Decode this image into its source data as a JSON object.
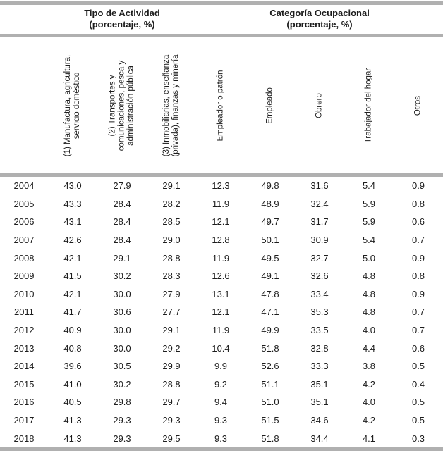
{
  "colors": {
    "rule_gray": "#b0b0b0",
    "text": "#1c1c1c",
    "background": "#ffffff"
  },
  "table": {
    "group_headers": [
      {
        "title": "Tipo de Actividad",
        "subtitle": "(porcentaje, %)",
        "span": 3
      },
      {
        "title": "Categoría Ocupacional",
        "subtitle": "(porcentaje, %)",
        "span": 5
      }
    ],
    "columns": [
      "(1) Manufactura, agricultura,\nservicio doméstico",
      "(2) Transportes y\ncomunicaciones, pesca y\nadministración pública",
      "(3) Inmobiliarias, enseñanza\n(privada), finanzas y minería",
      "Empleador o patrón",
      "Empleado",
      "Obrero",
      "Trabajador del hogar",
      "Otros"
    ],
    "rows": [
      {
        "year": "2004",
        "values": [
          "43.0",
          "27.9",
          "29.1",
          "12.3",
          "49.8",
          "31.6",
          "5.4",
          "0.9"
        ]
      },
      {
        "year": "2005",
        "values": [
          "43.3",
          "28.4",
          "28.2",
          "11.9",
          "48.9",
          "32.4",
          "5.9",
          "0.8"
        ]
      },
      {
        "year": "2006",
        "values": [
          "43.1",
          "28.4",
          "28.5",
          "12.1",
          "49.7",
          "31.7",
          "5.9",
          "0.6"
        ]
      },
      {
        "year": "2007",
        "values": [
          "42.6",
          "28.4",
          "29.0",
          "12.8",
          "50.1",
          "30.9",
          "5.4",
          "0.7"
        ]
      },
      {
        "year": "2008",
        "values": [
          "42.1",
          "29.1",
          "28.8",
          "11.9",
          "49.5",
          "32.7",
          "5.0",
          "0.9"
        ]
      },
      {
        "year": "2009",
        "values": [
          "41.5",
          "30.2",
          "28.3",
          "12.6",
          "49.1",
          "32.6",
          "4.8",
          "0.8"
        ]
      },
      {
        "year": "2010",
        "values": [
          "42.1",
          "30.0",
          "27.9",
          "13.1",
          "47.8",
          "33.4",
          "4.8",
          "0.9"
        ]
      },
      {
        "year": "2011",
        "values": [
          "41.7",
          "30.6",
          "27.7",
          "12.1",
          "47.1",
          "35.3",
          "4.8",
          "0.7"
        ]
      },
      {
        "year": "2012",
        "values": [
          "40.9",
          "30.0",
          "29.1",
          "11.9",
          "49.9",
          "33.5",
          "4.0",
          "0.7"
        ]
      },
      {
        "year": "2013",
        "values": [
          "40.8",
          "30.0",
          "29.2",
          "10.4",
          "51.8",
          "32.8",
          "4.4",
          "0.6"
        ]
      },
      {
        "year": "2014",
        "values": [
          "39.6",
          "30.5",
          "29.9",
          "9.9",
          "52.6",
          "33.3",
          "3.8",
          "0.5"
        ]
      },
      {
        "year": "2015",
        "values": [
          "41.0",
          "30.2",
          "28.8",
          "9.2",
          "51.1",
          "35.1",
          "4.2",
          "0.4"
        ]
      },
      {
        "year": "2016",
        "values": [
          "40.5",
          "29.8",
          "29.7",
          "9.4",
          "51.0",
          "35.1",
          "4.0",
          "0.5"
        ]
      },
      {
        "year": "2017",
        "values": [
          "41.3",
          "29.3",
          "29.3",
          "9.3",
          "51.5",
          "34.6",
          "4.2",
          "0.5"
        ]
      },
      {
        "year": "2018",
        "values": [
          "41.3",
          "29.3",
          "29.5",
          "9.3",
          "51.8",
          "34.4",
          "4.1",
          "0.3"
        ]
      }
    ]
  }
}
